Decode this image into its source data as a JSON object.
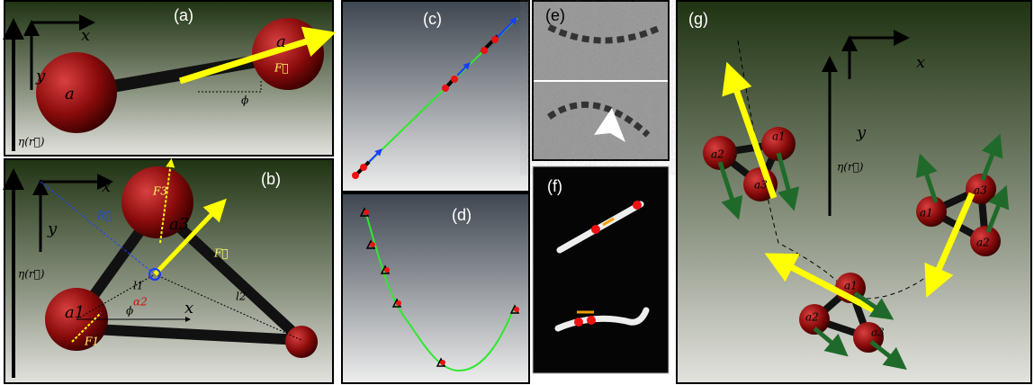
{
  "panels": {
    "a": {
      "label": "(a)",
      "x_axis": "x",
      "y_axis": "y",
      "field": "η(r⃗)",
      "sphere_left": "a",
      "sphere_right": "a",
      "force": "F⃗",
      "angle": "ϕ"
    },
    "b": {
      "label": "(b)",
      "x_axis": "x",
      "y_axis": "y",
      "field": "η(r⃗)",
      "sphere_top": "a3",
      "sphere_left": "a1",
      "position": "R⃗",
      "force": "F⃗",
      "force_1": "F1",
      "force_3": "F3",
      "angle_alpha": "α2",
      "length_1": "l1",
      "length_2": "l2",
      "angle": "ϕ",
      "local_x": "x"
    },
    "c": {
      "label": "(c)"
    },
    "d": {
      "label": "(d)"
    },
    "e": {
      "label": "(e)"
    },
    "f": {
      "label": "(f)"
    },
    "g": {
      "label": "(g)",
      "x_axis": "x",
      "y_axis": "y",
      "field": "η(r⃗)",
      "cluster_1": [
        "a2",
        "a1",
        "a3"
      ],
      "cluster_2": [
        "a1",
        "a3",
        "a2"
      ],
      "cluster_3": [
        "a1",
        "a2",
        "a3"
      ]
    }
  }
}
